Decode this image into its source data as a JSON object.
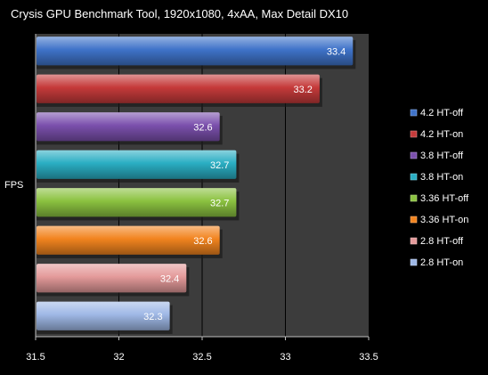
{
  "chart_data": {
    "type": "bar",
    "orientation": "horizontal",
    "title": "Crysis GPU Benchmark Tool, 1920x1080,  4xAA, Max Detail DX10",
    "ylabel": "FPS",
    "xlabel": "",
    "xlim": [
      31.5,
      33.5
    ],
    "ticks": [
      "31.5",
      "32",
      "32.5",
      "33",
      "33.5"
    ],
    "grid": true,
    "legend_position": "right",
    "series": [
      {
        "name": "4.2 HT-off",
        "value": 33.4,
        "label": "33.4",
        "color": "#3f73c9"
      },
      {
        "name": "4.2 HT-on",
        "value": 33.2,
        "label": "33.2",
        "color": "#c53a3a"
      },
      {
        "name": "3.8 HT-off",
        "value": 32.6,
        "label": "32.6",
        "color": "#7b50ad"
      },
      {
        "name": "3.8 HT-on",
        "value": 32.7,
        "label": "32.7",
        "color": "#2aaec3"
      },
      {
        "name": "3.36 HT-off",
        "value": 32.7,
        "label": "32.7",
        "color": "#8bc240"
      },
      {
        "name": "3.36 HT-on",
        "value": 32.6,
        "label": "32.6",
        "color": "#f2841f"
      },
      {
        "name": "2.8 HT-off",
        "value": 32.4,
        "label": "32.4",
        "color": "#e49a9a"
      },
      {
        "name": "2.8 HT-on",
        "value": 32.3,
        "label": "32.3",
        "color": "#9fb8e6"
      }
    ]
  }
}
